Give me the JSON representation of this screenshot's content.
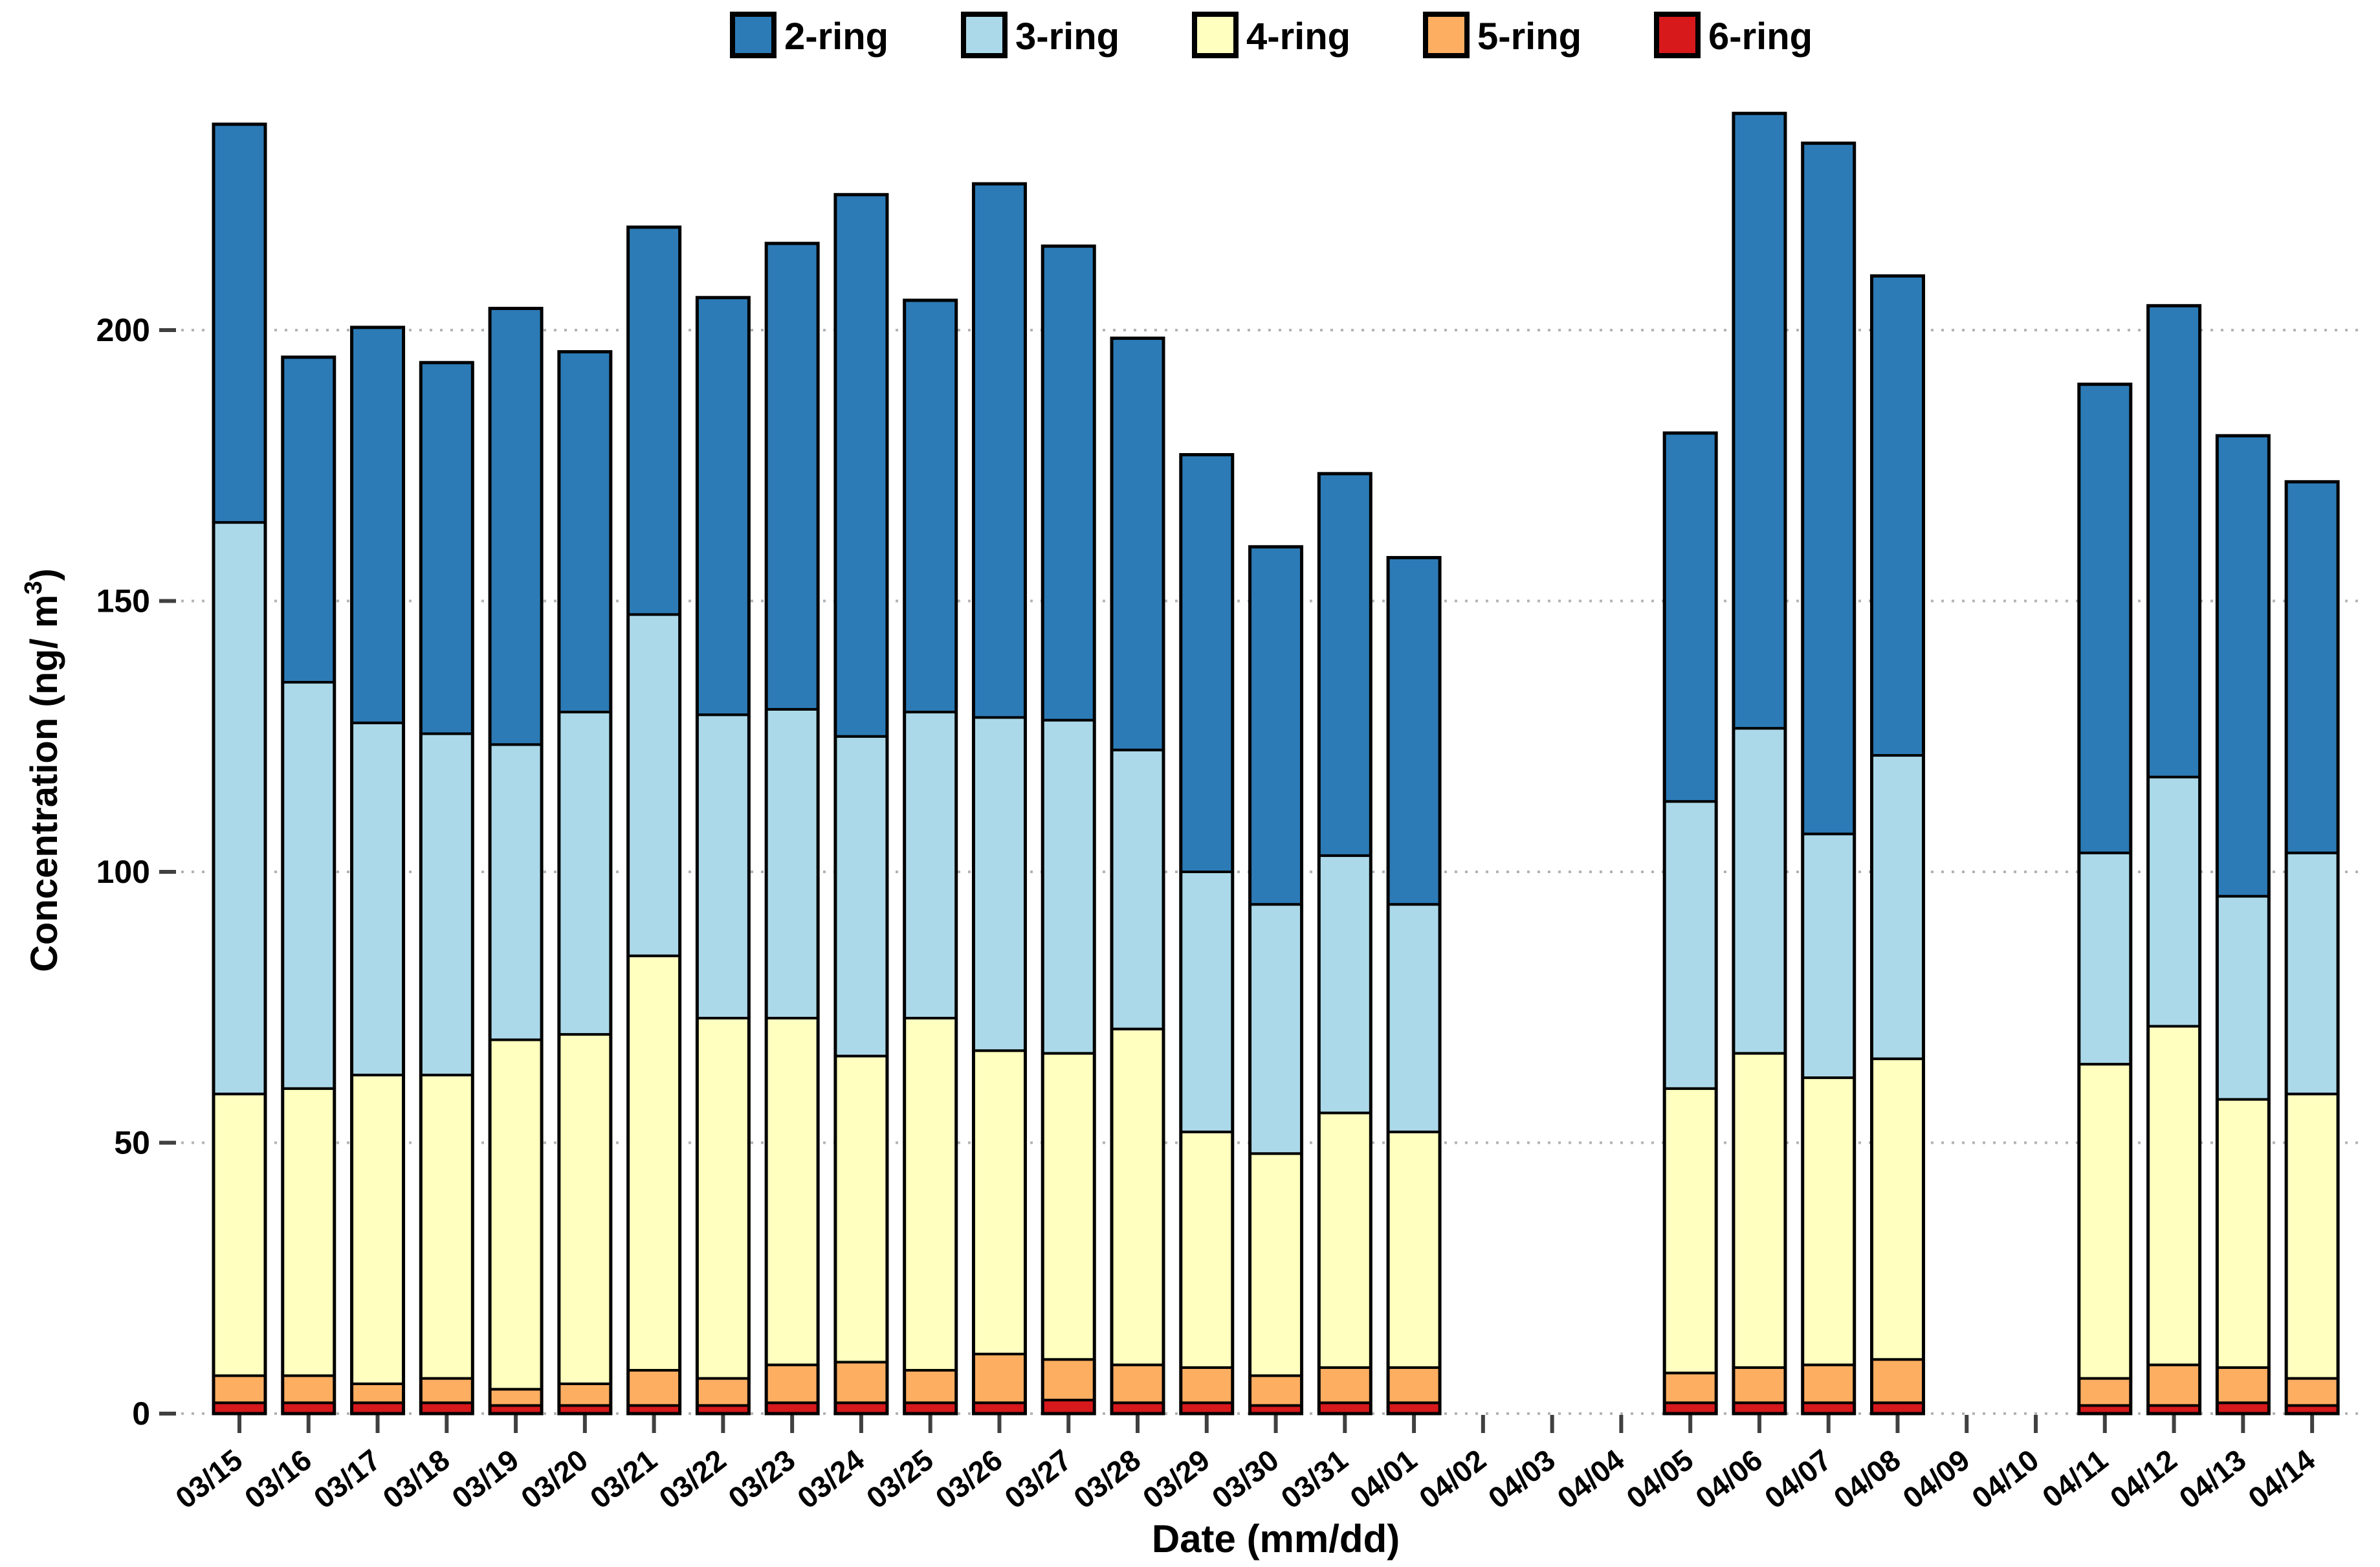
{
  "chart_data": {
    "type": "bar",
    "stacked": true,
    "title": "",
    "xlabel": "Date (mm/dd)",
    "ylabel": "Concentration (ng/ m³)",
    "ylim": [
      0,
      250
    ],
    "yticks": [
      0,
      50,
      100,
      150,
      200
    ],
    "grid": "dotted-horizontal",
    "legend_position": "top-center",
    "categories": [
      "03/15",
      "03/16",
      "03/17",
      "03/18",
      "03/19",
      "03/20",
      "03/21",
      "03/22",
      "03/23",
      "03/24",
      "03/25",
      "03/26",
      "03/27",
      "03/28",
      "03/29",
      "03/30",
      "03/31",
      "04/01",
      "04/02",
      "04/03",
      "04/04",
      "04/05",
      "04/06",
      "04/07",
      "04/08",
      "04/09",
      "04/10",
      "04/11",
      "04/12",
      "04/13",
      "04/14"
    ],
    "series": [
      {
        "name": "2-ring",
        "color": "#2c7bb6",
        "values": [
          73.5,
          60,
          73,
          68.5,
          80.5,
          66.5,
          71.5,
          77,
          86,
          100,
          76,
          98.5,
          87.5,
          76,
          77,
          66,
          70.5,
          64,
          0,
          0,
          0,
          68,
          113.5,
          127.5,
          88.5,
          0,
          0,
          86.5,
          87,
          85,
          68.5
        ]
      },
      {
        "name": "3-ring",
        "color": "#abd9e9",
        "values": [
          105.5,
          75,
          65,
          63,
          54.5,
          59.5,
          63,
          56,
          57,
          59,
          56.5,
          61.5,
          61.5,
          51.5,
          48,
          46,
          47.5,
          42,
          0,
          0,
          0,
          53,
          60,
          45,
          56,
          0,
          0,
          39,
          46,
          37.5,
          44.5
        ]
      },
      {
        "name": "4-ring",
        "color": "#ffffbf",
        "values": [
          52,
          53,
          57,
          56,
          64.5,
          64.5,
          76.5,
          66.5,
          64,
          56.5,
          65,
          56,
          56.5,
          62,
          43.5,
          41,
          47,
          43.5,
          0,
          0,
          0,
          52.5,
          58,
          53,
          55.5,
          0,
          0,
          58,
          62.5,
          49.5,
          52.5
        ]
      },
      {
        "name": "5-ring",
        "color": "#fdae61",
        "values": [
          5,
          5,
          3.5,
          4.5,
          3,
          4,
          6.5,
          5,
          7,
          7.5,
          6,
          9,
          7.5,
          7,
          6.5,
          5.5,
          6.5,
          6.5,
          0,
          0,
          0,
          5.5,
          6.5,
          7,
          8,
          0,
          0,
          5,
          7.5,
          6.5,
          5
        ]
      },
      {
        "name": "6-ring",
        "color": "#d7191c",
        "values": [
          2,
          2,
          2,
          2,
          1.5,
          1.5,
          1.5,
          1.5,
          2,
          2,
          2,
          2,
          2.5,
          2,
          2,
          1.5,
          2,
          2,
          0,
          0,
          0,
          2,
          2,
          2,
          2,
          0,
          0,
          1.5,
          1.5,
          2,
          1.5
        ]
      }
    ],
    "bar_totals": [
      238,
      195,
      200.5,
      194,
      204,
      196,
      219,
      206,
      216,
      225,
      205.5,
      227,
      215.5,
      198.5,
      177,
      160,
      173.5,
      158,
      0,
      0,
      0,
      181,
      240,
      234.5,
      210,
      0,
      0,
      190,
      204.5,
      180.5,
      172
    ],
    "missing_dates": [
      "04/02",
      "04/03",
      "04/04",
      "04/09",
      "04/10"
    ],
    "colors": {
      "bar_outline": "#000000",
      "gridline": "#b3b3b3",
      "tick": "#404040",
      "text": "#000000",
      "background": "#ffffff"
    }
  }
}
